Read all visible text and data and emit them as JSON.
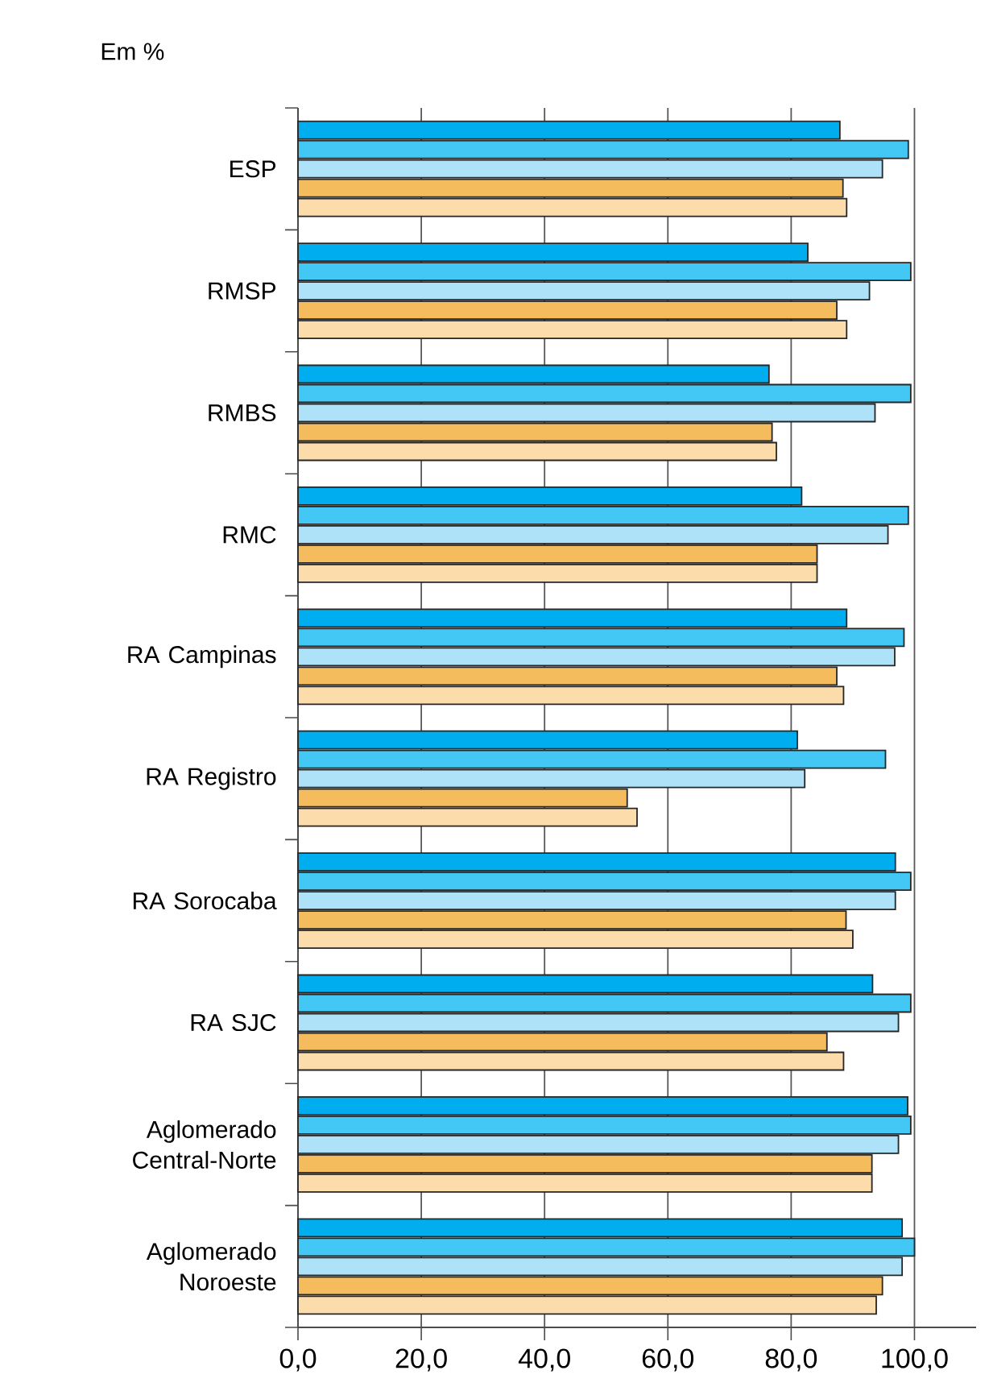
{
  "chart_data": {
    "type": "bar",
    "orientation": "horizontal",
    "ylabel": "Em %",
    "categories": [
      "ESP",
      "RMSP",
      "RMBS",
      "RMC",
      "RA Campinas",
      "RA Registro",
      "RA Sorocaba",
      "RA SJC",
      "Aglomerado Central-Norte",
      "Aglomerado Noroeste"
    ],
    "series": [
      {
        "color": "#00aeef",
        "values": [
          87.9,
          82.7,
          76.4,
          81.7,
          89.0,
          81.0,
          96.9,
          93.2,
          98.9,
          98.0
        ]
      },
      {
        "color": "#43c8f5",
        "values": [
          99.0,
          99.4,
          99.4,
          99.0,
          98.3,
          95.3,
          99.4,
          99.4,
          99.4,
          100.0
        ]
      },
      {
        "color": "#aee2f8",
        "values": [
          94.8,
          92.7,
          93.6,
          95.7,
          96.8,
          82.2,
          96.9,
          97.4,
          97.4,
          98.0
        ]
      },
      {
        "color": "#f5bc5e",
        "values": [
          88.4,
          87.4,
          76.9,
          84.2,
          87.4,
          53.4,
          88.9,
          85.8,
          93.1,
          94.8
        ]
      },
      {
        "color": "#fcdcaa",
        "values": [
          89.0,
          89.0,
          77.6,
          84.2,
          88.5,
          55.0,
          90.0,
          88.5,
          93.1,
          93.8
        ]
      }
    ],
    "xlim": [
      0,
      110
    ],
    "xticks": [
      {
        "value": 0,
        "label": "0,0"
      },
      {
        "value": 20,
        "label": "20,0"
      },
      {
        "value": 40,
        "label": "40,0"
      },
      {
        "value": 60,
        "label": "60,0"
      },
      {
        "value": 80,
        "label": "80,0"
      },
      {
        "value": 100,
        "label": "100,0"
      }
    ],
    "grid": "x"
  }
}
